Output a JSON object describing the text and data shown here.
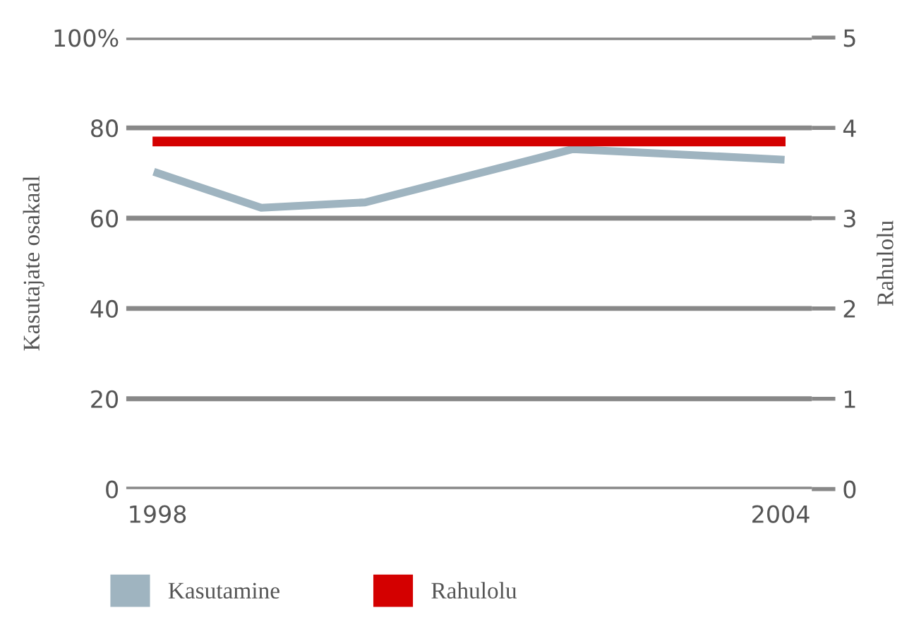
{
  "chart_data": {
    "type": "line",
    "xlabel": null,
    "ylabel": "Kasutajate osakaal",
    "y2label": "Rahulolu",
    "x": [
      1998,
      1999,
      2000,
      2002,
      2004
    ],
    "series": [
      {
        "name": "Kasutamine",
        "color": "#9fb4c0",
        "values": [
          70,
          62.3,
          63.5,
          75.3,
          73
        ]
      },
      {
        "name": "Rahulolu",
        "color": "#d40000",
        "axis": "y2",
        "x": [
          1998,
          2004
        ],
        "values": [
          3.85,
          3.85
        ]
      }
    ],
    "xlim": [
      1997.7,
      2004.3
    ],
    "xticks": [
      1998,
      2004
    ],
    "ylim": [
      0,
      100
    ],
    "yticks": [
      0,
      20,
      40,
      60,
      {
        "value": 80,
        "label": "80"
      },
      {
        "value": 100,
        "label": "100%"
      }
    ],
    "y2lim": [
      0,
      5
    ],
    "y2ticks": [
      0,
      1,
      2,
      3,
      4,
      5
    ],
    "grid": "y",
    "legend": "bottom",
    "marker": "none",
    "line_style": "solid"
  }
}
